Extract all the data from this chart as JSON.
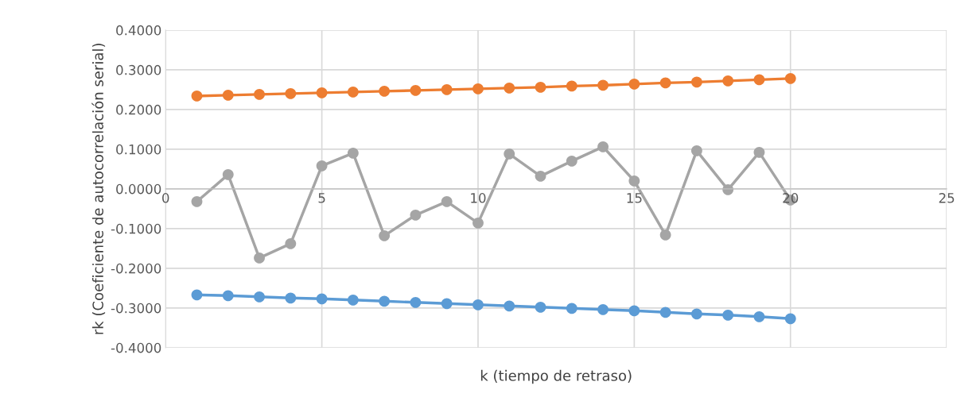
{
  "chart_data": {
    "type": "line",
    "xlabel": "k (tiempo de retraso)",
    "ylabel": "rk (Coeficiente de autocorrelación serial)",
    "x": [
      1,
      2,
      3,
      4,
      5,
      6,
      7,
      8,
      9,
      10,
      11,
      12,
      13,
      14,
      15,
      16,
      17,
      18,
      19,
      20
    ],
    "series": [
      {
        "color": "#ed7d31",
        "values": [
          0.234,
          0.236,
          0.238,
          0.24,
          0.242,
          0.244,
          0.246,
          0.248,
          0.25,
          0.252,
          0.254,
          0.256,
          0.259,
          0.261,
          0.264,
          0.267,
          0.269,
          0.272,
          0.275,
          0.278
        ]
      },
      {
        "color": "#a5a5a5",
        "values": [
          -0.032,
          0.036,
          -0.174,
          -0.138,
          0.058,
          0.09,
          -0.118,
          -0.066,
          -0.032,
          -0.086,
          0.088,
          0.032,
          0.07,
          0.106,
          0.02,
          -0.116,
          0.096,
          -0.002,
          0.092,
          -0.028
        ]
      },
      {
        "color": "#5b9bd5",
        "values": [
          -0.267,
          -0.269,
          -0.272,
          -0.275,
          -0.277,
          -0.28,
          -0.283,
          -0.286,
          -0.289,
          -0.292,
          -0.295,
          -0.298,
          -0.301,
          -0.304,
          -0.307,
          -0.311,
          -0.315,
          -0.318,
          -0.322,
          -0.327
        ]
      }
    ],
    "xlim": [
      0,
      25
    ],
    "xticks": [
      0,
      5,
      10,
      15,
      20,
      25
    ],
    "ylim": [
      -0.4,
      0.4
    ],
    "yticks": [
      {
        "value": -0.4,
        "label": "-0.4000"
      },
      {
        "value": -0.3,
        "label": "-0.3000"
      },
      {
        "value": -0.2,
        "label": "-0.2000"
      },
      {
        "value": -0.1,
        "label": "-0.1000"
      },
      {
        "value": 0,
        "label": "0.0000"
      },
      {
        "value": 0.1,
        "label": "0.1000"
      },
      {
        "value": 0.2,
        "label": "0.2000"
      },
      {
        "value": 0.3,
        "label": "0.3000"
      },
      {
        "value": 0.4,
        "label": "0.4000"
      }
    ],
    "grid": true,
    "marker": "circle",
    "line_style": "solid"
  }
}
